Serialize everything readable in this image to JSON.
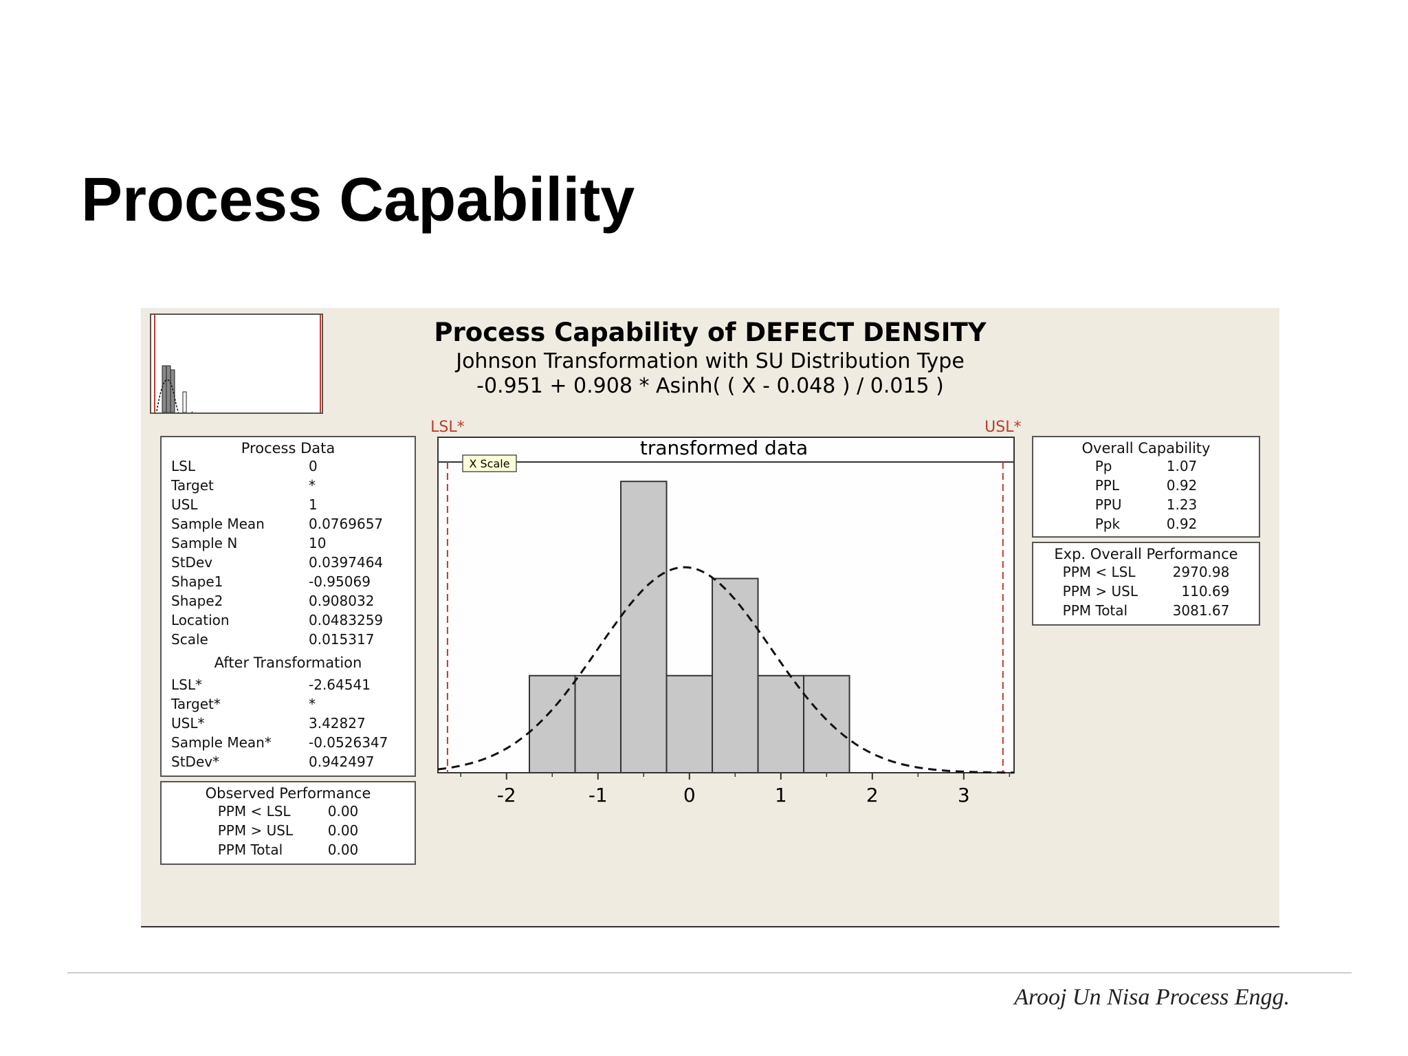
{
  "slide": {
    "title": "Process Capability",
    "footer": "Arooj Un Nisa Process Engg."
  },
  "chart_data": {
    "type": "bar",
    "title": "Process Capability of DEFECT DENSITY",
    "subtitle_line1": "Johnson Transformation with SU Distribution Type",
    "subtitle_line2": "-0.951 + 0.908 * Asinh( ( X - 0.048 ) / 0.015 )",
    "inner_title": "transformed data",
    "x_scale_tag": "X Scale",
    "bins": [
      {
        "x0": -1.75,
        "x1": -1.25,
        "value": 1
      },
      {
        "x0": -1.25,
        "x1": -0.75,
        "value": 1
      },
      {
        "x0": -0.75,
        "x1": -0.25,
        "value": 3
      },
      {
        "x0": -0.25,
        "x1": 0.25,
        "value": 1
      },
      {
        "x0": 0.25,
        "x1": 0.75,
        "value": 2
      },
      {
        "x0": 0.75,
        "x1": 1.25,
        "value": 1
      },
      {
        "x0": 1.25,
        "x1": 1.75,
        "value": 1
      }
    ],
    "normal_fit": {
      "mean": -0.0526347,
      "stdev": 0.942497
    },
    "xlim": [
      -2.75,
      3.55
    ],
    "ylim": [
      0,
      3.2
    ],
    "x_ticks": [
      "-2",
      "-1",
      "0",
      "1",
      "2",
      "3"
    ],
    "spec_lines": [
      {
        "label": "LSL*",
        "value": -2.64541,
        "color": "#c0392b"
      },
      {
        "label": "USL*",
        "value": 3.42827,
        "color": "#c0392b"
      }
    ],
    "process_data": {
      "title": "Process Data",
      "rows": [
        [
          "LSL",
          "0"
        ],
        [
          "Target",
          "*"
        ],
        [
          "USL",
          "1"
        ],
        [
          "Sample Mean",
          "0.0769657"
        ],
        [
          "Sample N",
          "10"
        ],
        [
          "StDev",
          "0.0397464"
        ],
        [
          "Shape1",
          "-0.95069"
        ],
        [
          "Shape2",
          "0.908032"
        ],
        [
          "Location",
          "0.0483259"
        ],
        [
          "Scale",
          "0.015317"
        ]
      ],
      "after_title": "After Transformation",
      "after_rows": [
        [
          "LSL*",
          "-2.64541"
        ],
        [
          "Target*",
          "*"
        ],
        [
          "USL*",
          "3.42827"
        ],
        [
          "Sample Mean*",
          "-0.0526347"
        ],
        [
          "StDev*",
          "0.942497"
        ]
      ]
    },
    "observed_performance": {
      "title": "Observed Performance",
      "rows": [
        [
          "PPM < LSL",
          "0.00"
        ],
        [
          "PPM > USL",
          "0.00"
        ],
        [
          "PPM Total",
          "0.00"
        ]
      ]
    },
    "overall_capability": {
      "title": "Overall Capability",
      "rows": [
        [
          "Pp",
          "1.07"
        ],
        [
          "PPL",
          "0.92"
        ],
        [
          "PPU",
          "1.23"
        ],
        [
          "Ppk",
          "0.92"
        ]
      ]
    },
    "expected_performance": {
      "title": "Exp. Overall Performance",
      "rows": [
        [
          "PPM < LSL",
          "2970.98"
        ],
        [
          "PPM > USL",
          "110.69"
        ],
        [
          "PPM Total",
          "3081.67"
        ]
      ]
    },
    "colors": {
      "bar_fill": "#c8c8c8",
      "bar_stroke": "#333333",
      "spec": "#c0392b",
      "background": "#efebe1"
    }
  }
}
